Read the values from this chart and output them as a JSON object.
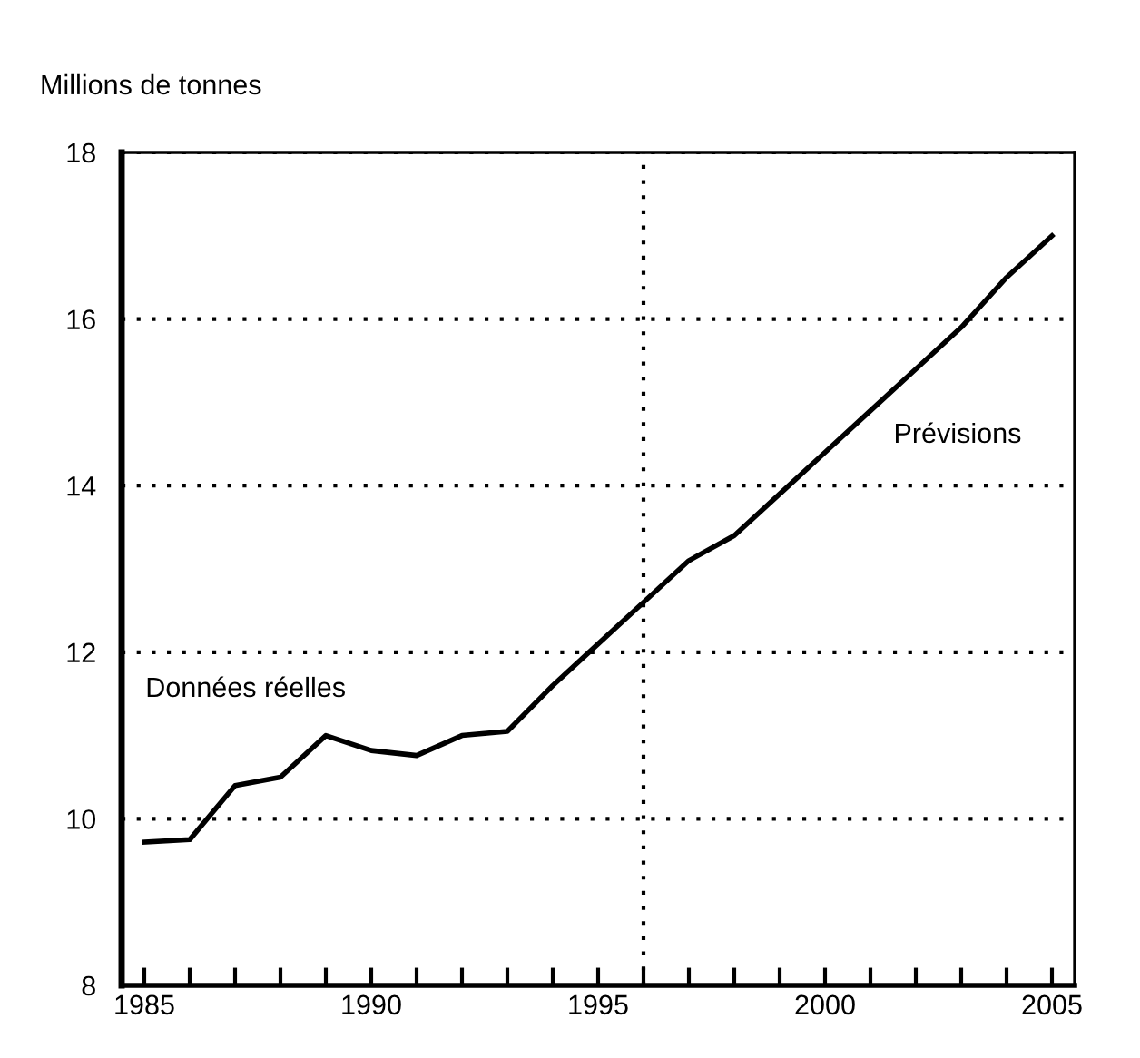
{
  "chart_data": {
    "type": "line",
    "ylabel": "Millions de tonnes",
    "x": [
      1985,
      1986,
      1987,
      1988,
      1989,
      1990,
      1991,
      1992,
      1993,
      1994,
      1995,
      1996,
      1997,
      1998,
      1999,
      2000,
      2001,
      2002,
      2003,
      2004,
      2005
    ],
    "series": [
      {
        "color": "#000000",
        "values": [
          9.72,
          9.75,
          10.4,
          10.5,
          11.0,
          10.82,
          10.76,
          11.0,
          11.05,
          11.6,
          12.1,
          12.6,
          13.1,
          13.4,
          13.9,
          14.4,
          14.9,
          15.4,
          15.9,
          16.5,
          17.0
        ]
      }
    ],
    "xlim": [
      1984.5,
      2005.5
    ],
    "xticks": [
      1985,
      {
        "value": 1986,
        "label": null
      },
      {
        "value": 1987,
        "label": null
      },
      {
        "value": 1988,
        "label": null
      },
      {
        "value": 1989,
        "label": null
      },
      1990,
      {
        "value": 1991,
        "label": null
      },
      {
        "value": 1992,
        "label": null
      },
      {
        "value": 1993,
        "label": null
      },
      {
        "value": 1994,
        "label": null
      },
      1995,
      {
        "value": 1996,
        "label": null
      },
      {
        "value": 1997,
        "label": null
      },
      {
        "value": 1998,
        "label": null
      },
      {
        "value": 1999,
        "label": null
      },
      2000,
      {
        "value": 2001,
        "label": null
      },
      {
        "value": 2002,
        "label": null
      },
      {
        "value": 2003,
        "label": null
      },
      {
        "value": 2004,
        "label": null
      },
      2005
    ],
    "ylim": [
      8,
      18
    ],
    "yticks": [
      8,
      10,
      12,
      14,
      16,
      18
    ],
    "grid": "y",
    "marker": "none",
    "line_style": "solid",
    "legend": false,
    "ref_lines": [
      {
        "axis": "x",
        "value": 1996,
        "color": "#000000",
        "line_style": "dotted"
      }
    ],
    "annotations": [
      "Données réelles",
      "Prévisions"
    ]
  }
}
